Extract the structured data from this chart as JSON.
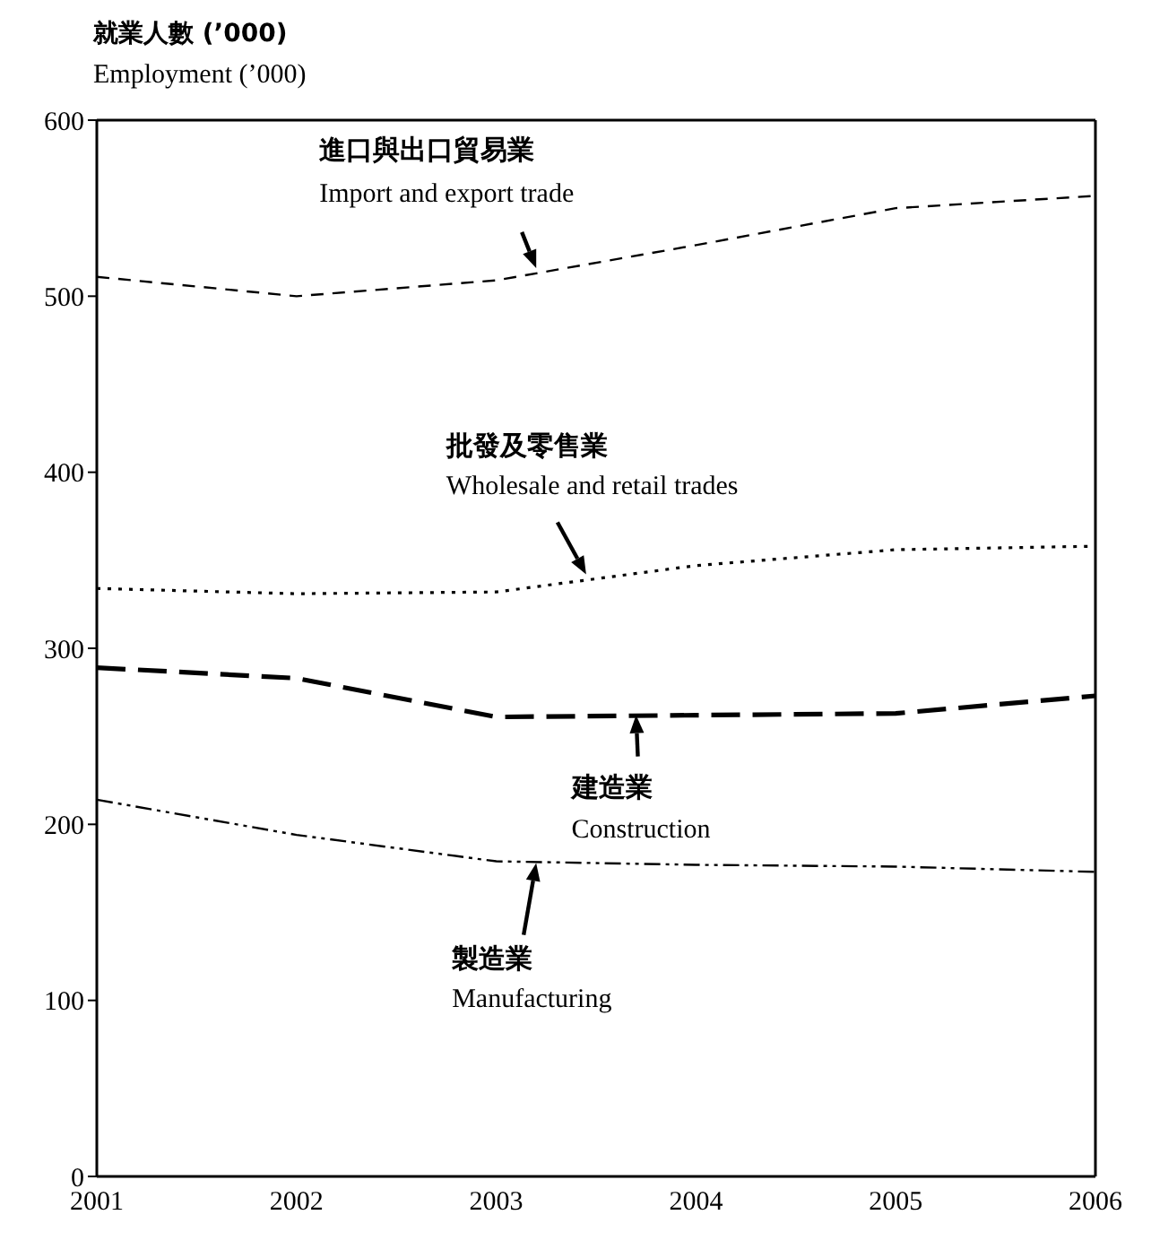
{
  "chart_data": {
    "type": "line",
    "ylabel": "就業人數 (’000)\nEmployment (’000)",
    "x": [
      2001,
      2002,
      2003,
      2004,
      2005,
      2006
    ],
    "series": [
      {
        "color": "#000000",
        "line_style": "dashed",
        "values": [
          511,
          500,
          509,
          529,
          550,
          557
        ]
      },
      {
        "color": "#000000",
        "line_style": "dotted",
        "values": [
          334,
          331,
          332,
          347,
          356,
          358
        ]
      },
      {
        "color": "#000000",
        "line_style": "dashed",
        "values": [
          289,
          283,
          261,
          262,
          263,
          273
        ]
      },
      {
        "color": "#000000",
        "line_style": "dashed",
        "values": [
          214,
          194,
          179,
          177,
          176,
          173
        ]
      }
    ],
    "xlim": [
      2001,
      2006
    ],
    "xticks": [
      2001,
      2002,
      2003,
      2004,
      2005,
      2006
    ],
    "ylim": [
      0,
      600
    ],
    "yticks": [
      0,
      100,
      200,
      300,
      400,
      500,
      600
    ],
    "grid": false,
    "legend": false,
    "marker": "none",
    "annotations": [
      {
        "text": "進口與出口貿易業\nImport and export trade",
        "x": 2003.2,
        "y": 516
      },
      {
        "text": "批發及零售業\nWholesale and retail trades",
        "x": 2003.45,
        "y": 342
      },
      {
        "text": "建造業\nConstruction",
        "x": 2003.7,
        "y": 262
      },
      {
        "text": "製造業\nManufacturing",
        "x": 2003.2,
        "y": 178
      }
    ]
  }
}
